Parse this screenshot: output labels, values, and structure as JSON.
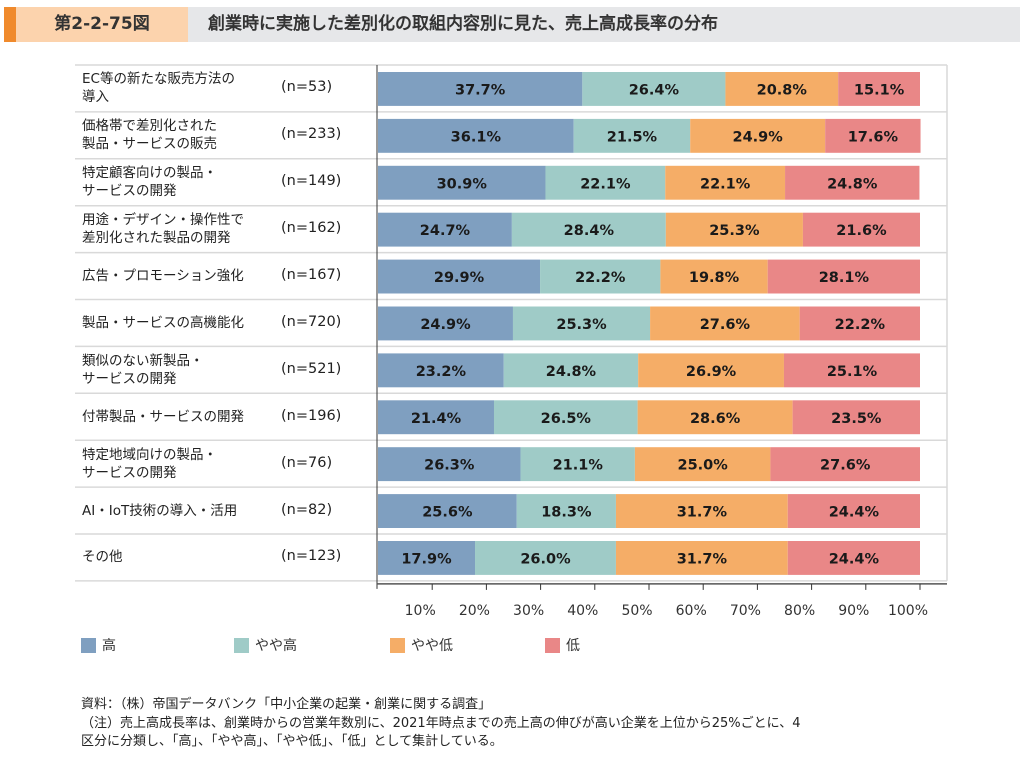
{
  "header": {
    "figure_number": "第2-2-75図",
    "title": "創業時に実施した差別化の取組内容別に見た、売上高成長率の分布"
  },
  "chart_data": {
    "type": "bar",
    "orientation": "horizontal",
    "stacked": true,
    "title": "創業時に実施した差別化の取組内容別に見た、売上高成長率の分布",
    "xlabel": "",
    "ylabel": "",
    "xlim": [
      0,
      100
    ],
    "x_ticks": [
      "10%",
      "20%",
      "30%",
      "40%",
      "50%",
      "60%",
      "70%",
      "80%",
      "90%",
      "100%"
    ],
    "categories": [
      "EC等の新たな販売方法の\n導入",
      "価格帯で差別化された\n製品・サービスの販売",
      "特定顧客向けの製品・\nサービスの開発",
      "用途・デザイン・操作性で\n差別化された製品の開発",
      "広告・プロモーション強化",
      "製品・サービスの高機能化",
      "類似のない新製品・\nサービスの開発",
      "付帯製品・サービスの開発",
      "特定地域向けの製品・\nサービスの開発",
      "AI・IoT技術の導入・活用",
      "その他"
    ],
    "n_labels": [
      "(n=53)",
      "(n=233)",
      "(n=149)",
      "(n=162)",
      "(n=167)",
      "(n=720)",
      "(n=521)",
      "(n=196)",
      "(n=76)",
      "(n=82)",
      "(n=123)"
    ],
    "series": [
      {
        "name": "高",
        "color": "#7f9fc0",
        "values": [
          37.7,
          36.1,
          30.9,
          24.7,
          29.9,
          24.9,
          23.2,
          21.4,
          26.3,
          25.6,
          17.9
        ]
      },
      {
        "name": "やや高",
        "color": "#9fcbc7",
        "values": [
          26.4,
          21.5,
          22.1,
          28.4,
          22.2,
          25.3,
          24.8,
          26.5,
          21.1,
          18.3,
          26.0
        ]
      },
      {
        "name": "やや低",
        "color": "#f5ad67",
        "values": [
          20.8,
          24.9,
          22.1,
          25.3,
          19.8,
          27.6,
          26.9,
          28.6,
          25.0,
          31.7,
          31.7
        ]
      },
      {
        "name": "低",
        "color": "#e98787",
        "values": [
          15.1,
          17.6,
          24.8,
          21.6,
          28.1,
          22.2,
          25.1,
          23.5,
          27.6,
          24.4,
          24.4
        ]
      }
    ],
    "legend_position": "bottom",
    "grid": false
  },
  "notes": {
    "source": "資料：（株）帝国データバンク「中小企業の起業・創業に関する調査」",
    "note_line1": "（注）売上高成長率は、創業時からの営業年数別に、2021年時点までの売上高の伸びが高い企業を上位から25%ごとに、4",
    "note_line2": "区分に分類し、「高」、「やや高」、「やや低」、「低」として集計している。"
  }
}
